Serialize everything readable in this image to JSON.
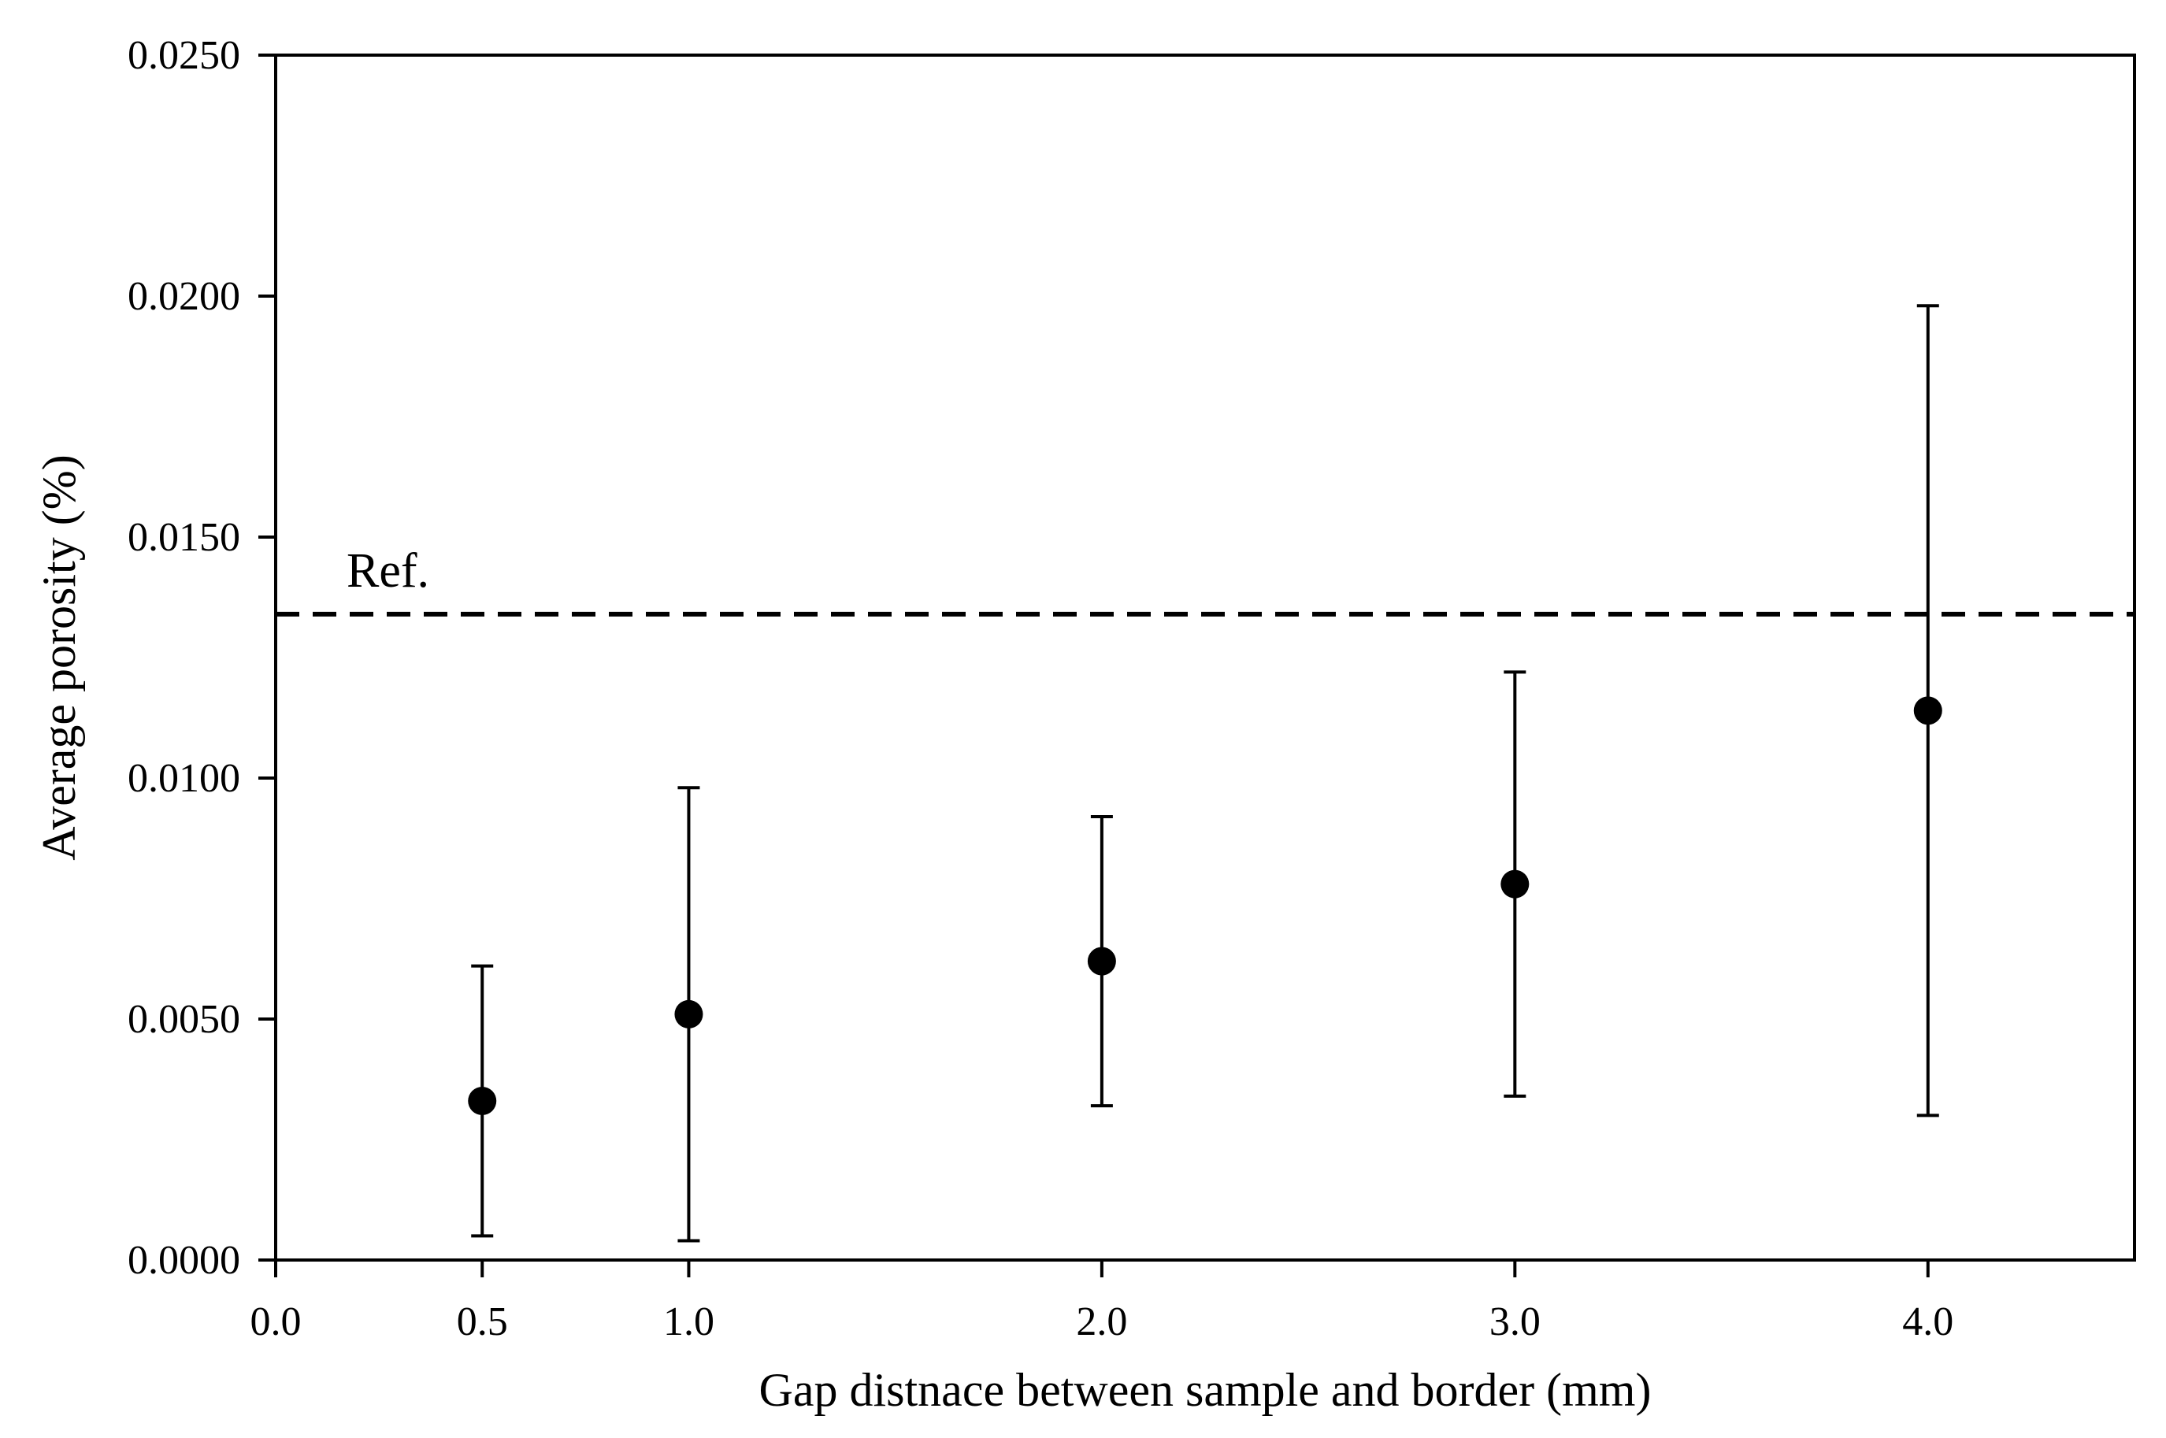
{
  "chart_data": {
    "type": "scatter",
    "xlabel": "Gap distnace between sample and border (mm)",
    "ylabel": "Average  porosity (%)",
    "xlim": [
      0,
      4.5
    ],
    "ylim": [
      0,
      0.025
    ],
    "x_ticks": [
      {
        "value": 0.0,
        "label": "0.0"
      },
      {
        "value": 0.5,
        "label": "0.5"
      },
      {
        "value": 1.0,
        "label": "1.0"
      },
      {
        "value": 2.0,
        "label": "2.0"
      },
      {
        "value": 3.0,
        "label": "3.0"
      },
      {
        "value": 4.0,
        "label": "4.0"
      }
    ],
    "y_ticks": [
      {
        "value": 0.0,
        "label": "0.0000"
      },
      {
        "value": 0.005,
        "label": "0.0050"
      },
      {
        "value": 0.01,
        "label": "0.0100"
      },
      {
        "value": 0.015,
        "label": "0.0150"
      },
      {
        "value": 0.02,
        "label": "0.0200"
      },
      {
        "value": 0.025,
        "label": "0.0250"
      }
    ],
    "points": [
      {
        "x": 0.5,
        "y": 0.0033,
        "err_low": 0.0005,
        "err_high": 0.0061
      },
      {
        "x": 1.0,
        "y": 0.0051,
        "err_low": 0.0004,
        "err_high": 0.0098
      },
      {
        "x": 2.0,
        "y": 0.0062,
        "err_low": 0.0032,
        "err_high": 0.0092
      },
      {
        "x": 3.0,
        "y": 0.0078,
        "err_low": 0.0034,
        "err_high": 0.0122
      },
      {
        "x": 4.0,
        "y": 0.0114,
        "err_low": 0.003,
        "err_high": 0.0198
      }
    ],
    "reference": {
      "y": 0.0134,
      "label": "Ref.",
      "style": "dashed"
    },
    "grid": false,
    "legend": "none"
  }
}
